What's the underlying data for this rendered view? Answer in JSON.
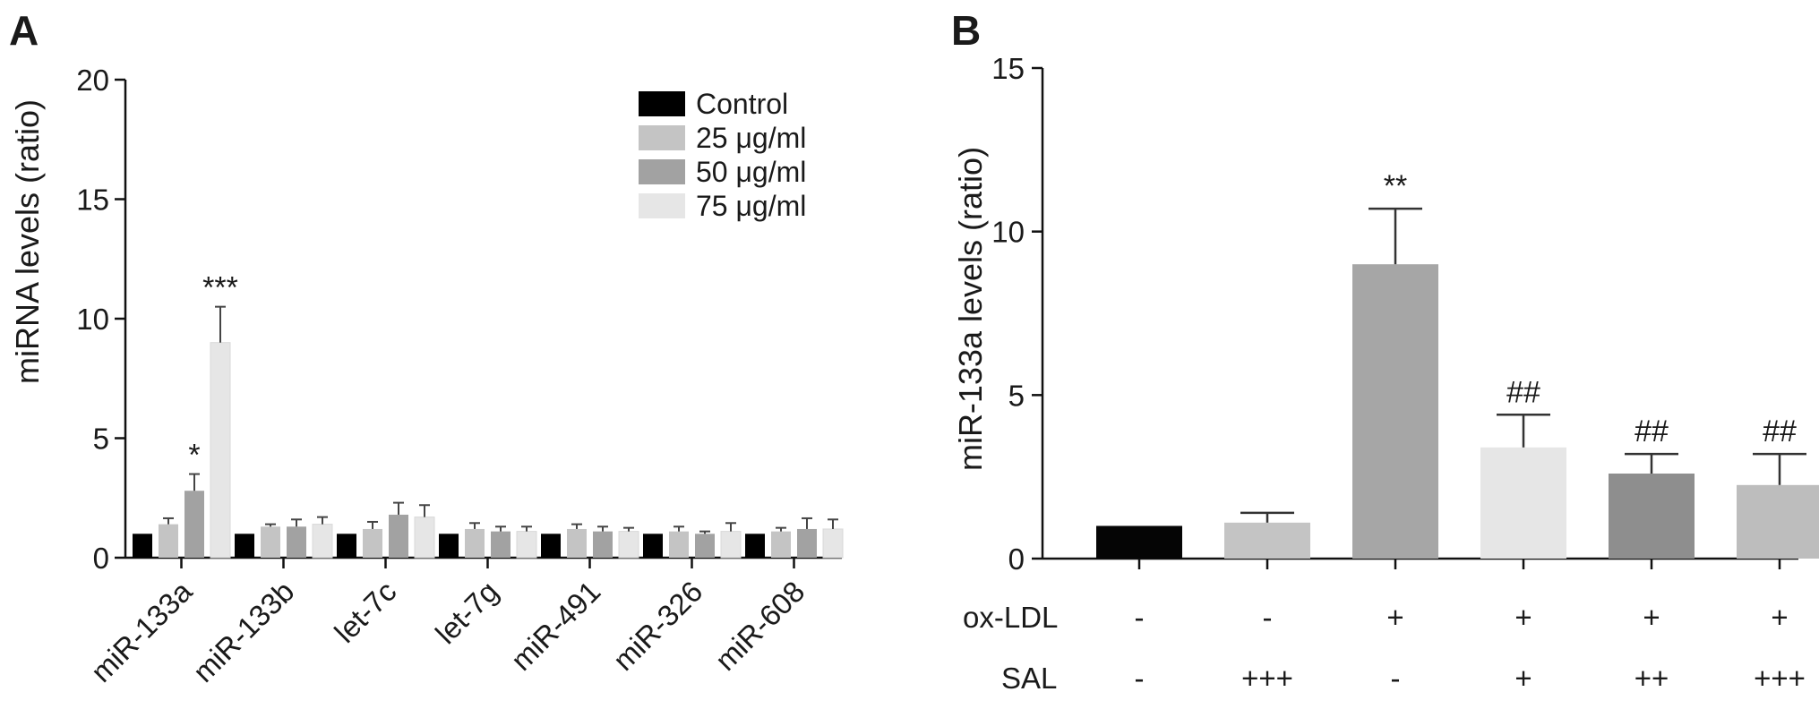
{
  "panels": {
    "a": {
      "letter": "A"
    },
    "b": {
      "letter": "B"
    }
  },
  "chart_data": [
    {
      "type": "bar",
      "title": "",
      "xlabel": "",
      "ylabel": "miRNA levels (ratio)",
      "ylim": [
        0,
        20
      ],
      "yticks": [
        0,
        5,
        10,
        15,
        20
      ],
      "categories": [
        "miR-133a",
        "miR-133b",
        "let-7c",
        "let-7g",
        "miR-491",
        "miR-326",
        "miR-608"
      ],
      "legend_position": "top-right",
      "grid": false,
      "series": [
        {
          "name": "Control",
          "color": "#000000",
          "values": [
            1.0,
            1.0,
            1.0,
            1.0,
            1.0,
            1.0,
            1.0
          ],
          "errors": [
            0.0,
            0.0,
            0.0,
            0.0,
            0.0,
            0.0,
            0.0
          ]
        },
        {
          "name": "25 μg/ml",
          "color": "#c4c4c4",
          "values": [
            1.4,
            1.3,
            1.2,
            1.2,
            1.2,
            1.1,
            1.1
          ],
          "errors": [
            0.25,
            0.1,
            0.3,
            0.25,
            0.2,
            0.2,
            0.15
          ]
        },
        {
          "name": "50 μg/ml",
          "color": "#a2a2a2",
          "values": [
            2.8,
            1.3,
            1.8,
            1.1,
            1.1,
            1.0,
            1.2
          ],
          "errors": [
            0.7,
            0.3,
            0.5,
            0.2,
            0.2,
            0.1,
            0.45
          ]
        },
        {
          "name": "75 μg/ml",
          "color": "#e6e6e6",
          "values": [
            9.0,
            1.4,
            1.7,
            1.1,
            1.1,
            1.1,
            1.2
          ],
          "errors": [
            1.5,
            0.3,
            0.5,
            0.2,
            0.15,
            0.35,
            0.4
          ]
        }
      ],
      "annotations": [
        {
          "category": "miR-133a",
          "series": "50 μg/ml",
          "text": "*"
        },
        {
          "category": "miR-133a",
          "series": "75 μg/ml",
          "text": "***"
        }
      ]
    },
    {
      "type": "bar",
      "title": "",
      "xlabel": "",
      "ylabel": "miR-133a levels (ratio)",
      "ylim": [
        0,
        15
      ],
      "yticks": [
        0,
        5,
        10,
        15
      ],
      "grid": false,
      "condition_labels": [
        "ox-LDL",
        "SAL"
      ],
      "categories": [
        {
          "oxldl": "-",
          "sal": "-"
        },
        {
          "oxldl": "-",
          "sal": "+++"
        },
        {
          "oxldl": "+",
          "sal": "-"
        },
        {
          "oxldl": "+",
          "sal": "+"
        },
        {
          "oxldl": "+",
          "sal": "++"
        },
        {
          "oxldl": "+",
          "sal": "+++"
        }
      ],
      "values": [
        1.0,
        1.1,
        9.0,
        3.4,
        2.6,
        2.25
      ],
      "errors": [
        0.0,
        0.3,
        1.7,
        1.0,
        0.6,
        0.95
      ],
      "colors": [
        "#050505",
        "#c4c4c4",
        "#a6a6a6",
        "#e6e6e6",
        "#8e8e8e",
        "#bdbdbd"
      ],
      "annotations": [
        "",
        "",
        "**",
        "##",
        "##",
        "##"
      ]
    }
  ]
}
